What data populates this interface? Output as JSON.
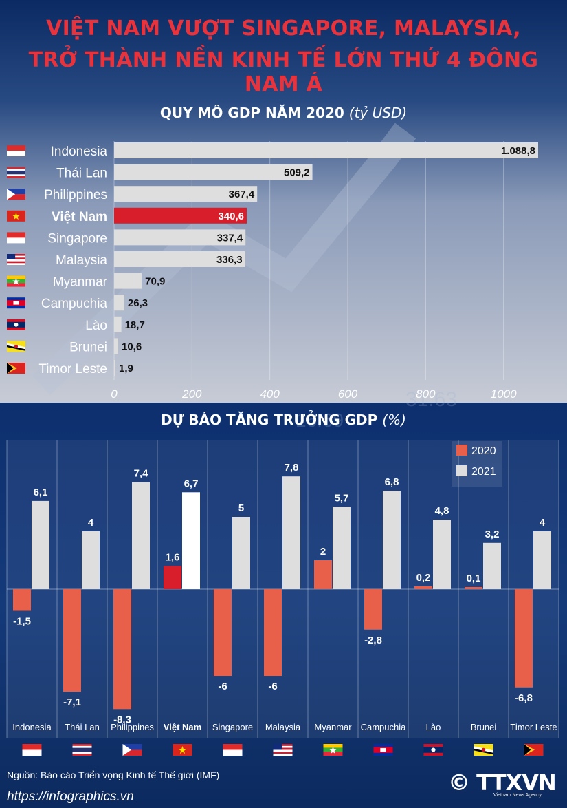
{
  "title": {
    "line1": "VIỆT NAM VƯỢT SINGAPORE, MALAYSIA,",
    "line2": "TRỞ THÀNH NỀN KINH TẾ LỚN THỨ 4 ĐÔNG NAM Á"
  },
  "gdp_section": {
    "heading": "QUY MÔ GDP NĂM 2020",
    "unit": "(tỷ USD)"
  },
  "growth_section": {
    "heading": "DỰ BÁO TĂNG TRƯỞNG GDP",
    "unit": "(%)"
  },
  "footer": {
    "source": "Nguồn: Báo cáo Triển vọng Kinh tế Thế giới (IMF)",
    "website": "https://infographics.vn",
    "logo": "© TTXVN",
    "logo_sub": "Vietnam News Agency"
  },
  "colors": {
    "accent_red": "#e8323c",
    "bar_2020": "#e9604a",
    "bar_2021": "#dedede",
    "highlight": "#d81e2a",
    "title_red": "#e8323c"
  },
  "chart_data": [
    {
      "type": "bar",
      "orientation": "horizontal",
      "title": "QUY MÔ GDP NĂM 2020 (tỷ USD)",
      "categories": [
        "Indonesia",
        "Thái Lan",
        "Philippines",
        "Việt Nam",
        "Singapore",
        "Malaysia",
        "Myanmar",
        "Campuchia",
        "Lào",
        "Brunei",
        "Timor Leste"
      ],
      "values": [
        1088.8,
        509.2,
        367.4,
        340.6,
        337.4,
        336.3,
        70.9,
        26.3,
        18.7,
        10.6,
        1.9
      ],
      "value_labels": [
        "1.088,8",
        "509,2",
        "367,4",
        "340,6",
        "337,4",
        "336,3",
        "70,9",
        "26,3",
        "18,7",
        "10,6",
        "1,9"
      ],
      "highlight": "Việt Nam",
      "xlim": [
        0,
        1088.8
      ],
      "xticks": [
        0,
        200,
        400,
        600,
        800,
        1000
      ],
      "grid": true
    },
    {
      "type": "bar",
      "title": "DỰ BÁO TĂNG TRƯỞNG GDP (%)",
      "categories": [
        "Indonesia",
        "Thái Lan",
        "Philippines",
        "Việt Nam",
        "Singapore",
        "Malaysia",
        "Myanmar",
        "Campuchia",
        "Lào",
        "Brunei",
        "Timor Leste"
      ],
      "highlight": "Việt Nam",
      "series": [
        {
          "name": "2020",
          "values": [
            -1.5,
            -7.1,
            -8.3,
            1.6,
            -6,
            -6,
            2,
            -2.8,
            0.2,
            0.1,
            -6.8
          ],
          "labels": [
            "-1,5",
            "-7,1",
            "-8,3",
            "1,6",
            "-6",
            "-6",
            "2",
            "-2,8",
            "0,2",
            "0,1",
            "-6,8"
          ]
        },
        {
          "name": "2021",
          "values": [
            6.1,
            4,
            7.4,
            6.7,
            5,
            7.8,
            5.7,
            6.8,
            4.8,
            3.2,
            4
          ],
          "labels": [
            "6,1",
            "4",
            "7,4",
            "6,7",
            "5",
            "7,8",
            "5,7",
            "6,8",
            "4,8",
            "3,2",
            "4"
          ]
        }
      ],
      "legend": "top-right"
    }
  ],
  "flags": [
    "indonesia-flag",
    "thailand-flag",
    "philippines-flag",
    "vietnam-flag",
    "singapore-flag",
    "malaysia-flag",
    "myanmar-flag",
    "cambodia-flag",
    "laos-flag",
    "brunei-flag",
    "timor-leste-flag"
  ]
}
